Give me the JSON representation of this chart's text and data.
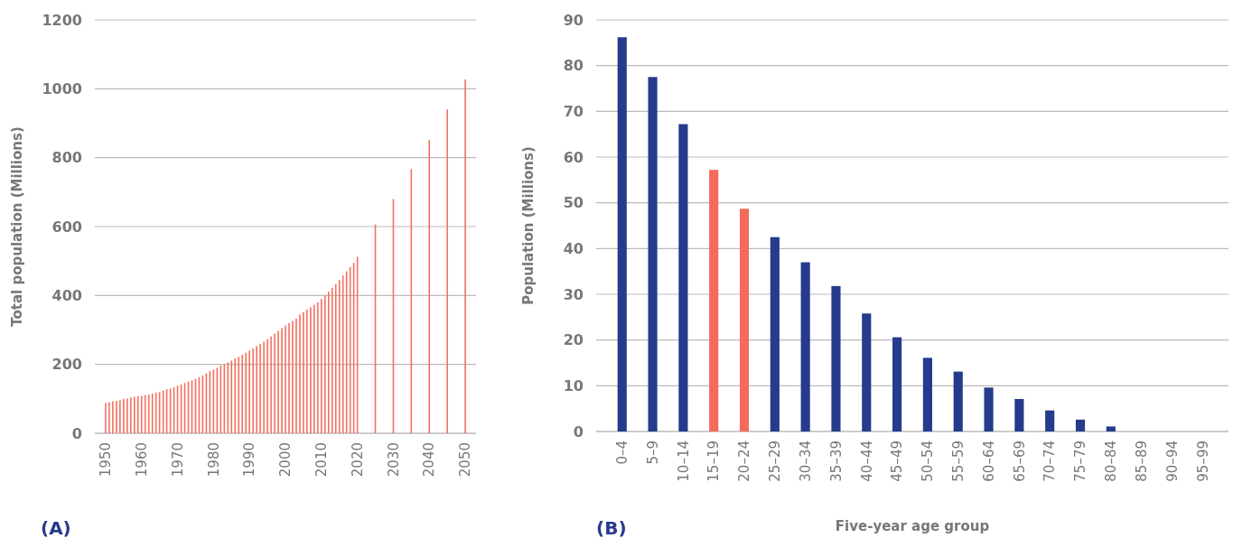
{
  "chart_data": [
    {
      "type": "bar",
      "title": "(A)",
      "ylabel": "Total population (Millions)",
      "x": [
        1950,
        1951,
        1952,
        1953,
        1954,
        1955,
        1956,
        1957,
        1958,
        1959,
        1960,
        1961,
        1962,
        1963,
        1964,
        1965,
        1966,
        1967,
        1968,
        1969,
        1970,
        1971,
        1972,
        1973,
        1974,
        1975,
        1976,
        1977,
        1978,
        1979,
        1980,
        1981,
        1982,
        1983,
        1984,
        1985,
        1986,
        1987,
        1988,
        1989,
        1990,
        1991,
        1992,
        1993,
        1994,
        1995,
        1996,
        1997,
        1998,
        1999,
        2000,
        2001,
        2002,
        2003,
        2004,
        2005,
        2006,
        2007,
        2008,
        2009,
        2010,
        2011,
        2012,
        2013,
        2014,
        2015,
        2016,
        2017,
        2018,
        2019,
        2020,
        2025,
        2030,
        2035,
        2040,
        2045,
        2050
      ],
      "values": [
        88,
        90,
        93,
        94,
        96,
        100,
        101,
        104,
        106,
        108,
        109,
        111,
        112,
        115,
        118,
        120,
        124,
        128,
        130,
        134,
        138,
        142,
        146,
        150,
        154,
        158,
        163,
        168,
        174,
        181,
        185,
        190,
        196,
        201,
        206,
        211,
        217,
        222,
        228,
        234,
        240,
        246,
        253,
        259,
        266,
        273,
        281,
        289,
        297,
        305,
        313,
        320,
        326,
        333,
        345,
        352,
        359,
        366,
        373,
        380,
        390,
        400,
        411,
        422,
        433,
        445,
        458,
        470,
        483,
        495,
        512,
        606,
        680,
        767,
        851,
        940,
        1027
      ],
      "color": "#f47060",
      "xlim": [
        1947,
        2053
      ],
      "xticks": [
        1950,
        1960,
        1970,
        1980,
        1990,
        2000,
        2010,
        2020,
        2030,
        2040,
        2050
      ],
      "ylim": [
        0,
        1200
      ],
      "yticks": [
        0,
        200,
        400,
        600,
        800,
        1000,
        1200
      ],
      "grid": "y"
    },
    {
      "type": "bar",
      "title": "(B)",
      "xlabel": "Five-year age group",
      "ylabel": "Population (Millions)",
      "categories": [
        "0–4",
        "5–9",
        "10–14",
        "15–19",
        "20–24",
        "25–29",
        "30–34",
        "35–39",
        "40–44",
        "45–49",
        "50–54",
        "55–59",
        "60–64",
        "65–69",
        "70–74",
        "75–79",
        "80–84",
        "85–89",
        "90–94",
        "95–99"
      ],
      "values": [
        86.2,
        77.5,
        67.2,
        57.2,
        48.7,
        42.5,
        37,
        31.8,
        25.8,
        20.6,
        16.1,
        13.1,
        9.6,
        7.1,
        4.6,
        2.6,
        1.1,
        0,
        0,
        0
      ],
      "colors": [
        "#253b8c",
        "#253b8c",
        "#253b8c",
        "#f26b5b",
        "#f26b5b",
        "#253b8c",
        "#253b8c",
        "#253b8c",
        "#253b8c",
        "#253b8c",
        "#253b8c",
        "#253b8c",
        "#253b8c",
        "#253b8c",
        "#253b8c",
        "#253b8c",
        "#253b8c",
        "#253b8c",
        "#253b8c",
        "#253b8c"
      ],
      "ylim": [
        0,
        90
      ],
      "yticks": [
        0,
        10,
        20,
        30,
        40,
        50,
        60,
        70,
        80,
        90
      ],
      "grid": "y"
    }
  ]
}
